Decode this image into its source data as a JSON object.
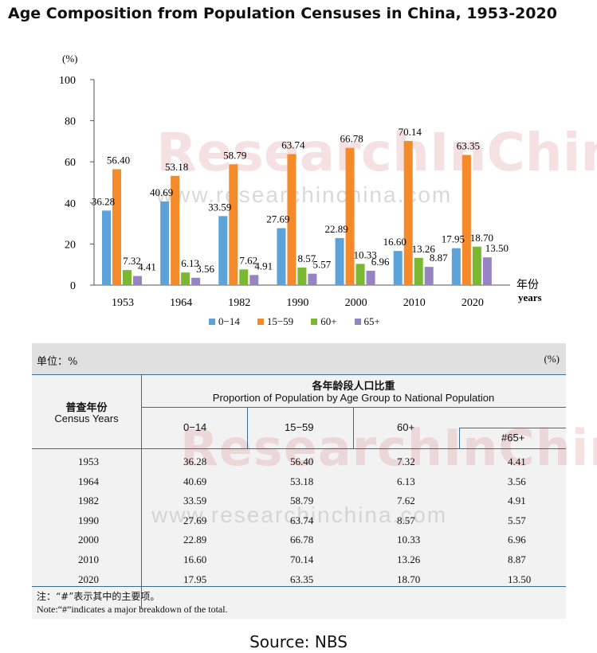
{
  "title": "Age Composition from Population Censuses in China, 1953-2020",
  "watermark": {
    "brand": "ResearchInChina",
    "url": "www.researchinchina.com"
  },
  "chart_data": {
    "type": "bar",
    "unit_label": "(%)",
    "x_unit_cn": "年份",
    "x_unit_en": "years",
    "categories": [
      "1953",
      "1964",
      "1982",
      "1990",
      "2000",
      "2010",
      "2020"
    ],
    "series": [
      {
        "name": "0−14",
        "color": "#5ba3d8",
        "values": [
          36.28,
          40.69,
          33.59,
          27.69,
          22.89,
          16.6,
          17.95
        ],
        "labels": [
          "36.28",
          "40.69",
          "33.59",
          "27.69",
          "22.89",
          "16.60",
          "17.95"
        ]
      },
      {
        "name": "15−59",
        "color": "#f58a2b",
        "values": [
          56.4,
          53.18,
          58.79,
          63.74,
          66.78,
          70.14,
          63.35
        ],
        "labels": [
          "56.40",
          "53.18",
          "58.79",
          "63.74",
          "66.78",
          "70.14",
          "63.35"
        ]
      },
      {
        "name": "60+",
        "color": "#7ab832",
        "values": [
          7.32,
          6.13,
          7.62,
          8.57,
          10.33,
          13.26,
          18.7
        ],
        "labels": [
          "7.32",
          "6.13",
          "7.62",
          "8.57",
          "10.33",
          "13.26",
          "18.70"
        ]
      },
      {
        "name": "65+",
        "color": "#9684c2",
        "values": [
          4.41,
          3.56,
          4.91,
          5.57,
          6.96,
          8.87,
          13.5
        ],
        "labels": [
          "4.41",
          "3.56",
          "4.91",
          "5.57",
          "6.96",
          "8.87",
          "13.50"
        ]
      }
    ],
    "ylim": [
      0,
      100
    ],
    "yticks": [
      "0",
      "20",
      "40",
      "60",
      "80",
      "100"
    ]
  },
  "table": {
    "unit_cn": "单位：%",
    "unit_right": "(%)",
    "year_header_cn": "普查年份",
    "year_header_en": "Census Years",
    "main_header_cn": "各年龄段人口比重",
    "main_header_en": "Proportion of Population by Age Group to National Population",
    "columns": [
      "0−14",
      "15−59",
      "60+",
      "#65+"
    ],
    "rows": [
      {
        "year": "1953",
        "a": "36.28",
        "b": "56.40",
        "c": "7.32",
        "d": "4.41"
      },
      {
        "year": "1964",
        "a": "40.69",
        "b": "53.18",
        "c": "6.13",
        "d": "3.56"
      },
      {
        "year": "1982",
        "a": "33.59",
        "b": "58.79",
        "c": "7.62",
        "d": "4.91"
      },
      {
        "year": "1990",
        "a": "27.69",
        "b": "63.74",
        "c": "8.57",
        "d": "5.57"
      },
      {
        "year": "2000",
        "a": "22.89",
        "b": "66.78",
        "c": "10.33",
        "d": "6.96"
      },
      {
        "year": "2010",
        "a": "16.60",
        "b": "70.14",
        "c": "13.26",
        "d": "8.87"
      },
      {
        "year": "2020",
        "a": "17.95",
        "b": "63.35",
        "c": "18.70",
        "d": "13.50"
      }
    ],
    "note_cn": "注：“#”表示其中的主要项。",
    "note_en": "Note:“#”indicates a major breakdown of the total."
  },
  "source": "Source: NBS"
}
